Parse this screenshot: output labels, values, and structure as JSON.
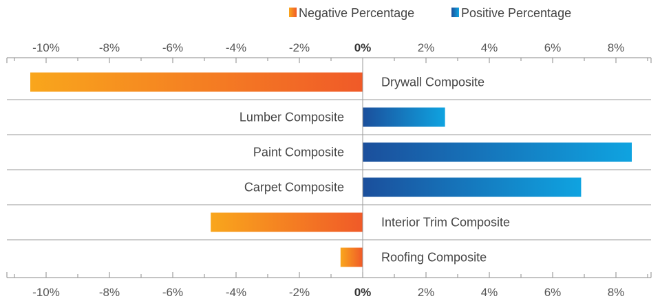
{
  "chart_data": {
    "type": "bar",
    "orientation": "horizontal",
    "title": "",
    "xlabel": "",
    "ylabel": "",
    "xlim": [
      -11,
      9
    ],
    "ticks": [
      -10,
      -8,
      -6,
      -4,
      -2,
      0,
      2,
      4,
      6,
      8
    ],
    "tick_labels": [
      "-10%",
      "-8%",
      "-6%",
      "-4%",
      "-2%",
      "0%",
      "2%",
      "4%",
      "6%",
      "8%"
    ],
    "categories": [
      "Drywall Composite",
      "Lumber Composite",
      "Paint Composite",
      "Carpet Composite",
      "Interior Trim Composite",
      "Roofing Composite"
    ],
    "values": [
      -10.5,
      2.6,
      8.5,
      6.9,
      -4.8,
      -0.7
    ],
    "legend": {
      "placement": "top-right",
      "entries": [
        {
          "name": "Negative Percentage",
          "color_start": "#f9a61c",
          "color_end": "#f05a28"
        },
        {
          "name": "Positive Percentage",
          "color_start": "#1b4f9c",
          "color_end": "#0fa3e0"
        }
      ]
    },
    "grid": false,
    "row_separators": true
  }
}
